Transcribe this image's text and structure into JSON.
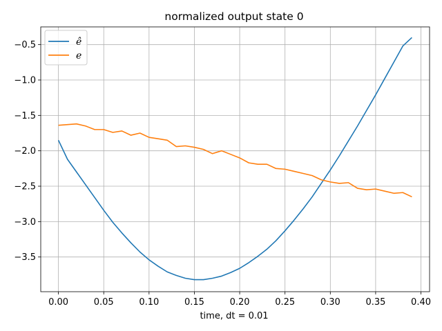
{
  "chart_data": {
    "type": "line",
    "title": "normalized output state 0",
    "xlabel": "time, dt = 0.01",
    "ylabel": "",
    "xlim": [
      -0.0195,
      0.4095
    ],
    "ylim": [
      -3.99,
      -0.25
    ],
    "xticks": [
      0.0,
      0.05,
      0.1,
      0.15,
      0.2,
      0.25,
      0.3,
      0.35,
      0.4
    ],
    "xtick_labels": [
      "0.00",
      "0.05",
      "0.10",
      "0.15",
      "0.20",
      "0.25",
      "0.30",
      "0.35",
      "0.40"
    ],
    "yticks": [
      -3.5,
      -3.0,
      -2.5,
      -2.0,
      -1.5,
      -1.0,
      -0.5
    ],
    "ytick_labels": [
      "−3.5",
      "−3.0",
      "−2.5",
      "−2.0",
      "−1.5",
      "−1.0",
      "−0.5"
    ],
    "grid": true,
    "legend_position": "top-left",
    "x": [
      0.0,
      0.01,
      0.02,
      0.03,
      0.04,
      0.05,
      0.06,
      0.07,
      0.08,
      0.09,
      0.1,
      0.11,
      0.12,
      0.13,
      0.14,
      0.15,
      0.16,
      0.17,
      0.18,
      0.19,
      0.2,
      0.21,
      0.22,
      0.23,
      0.24,
      0.25,
      0.26,
      0.27,
      0.28,
      0.29,
      0.3,
      0.31,
      0.32,
      0.33,
      0.34,
      0.35,
      0.36,
      0.37,
      0.38,
      0.39
    ],
    "series": [
      {
        "name": "ê",
        "color": "#1f77b4",
        "values": [
          -1.85,
          -2.12,
          -2.3,
          -2.48,
          -2.66,
          -2.84,
          -3.01,
          -3.16,
          -3.3,
          -3.43,
          -3.54,
          -3.63,
          -3.71,
          -3.76,
          -3.8,
          -3.82,
          -3.82,
          -3.8,
          -3.77,
          -3.72,
          -3.66,
          -3.58,
          -3.49,
          -3.39,
          -3.27,
          -3.13,
          -2.98,
          -2.82,
          -2.65,
          -2.46,
          -2.27,
          -2.07,
          -1.86,
          -1.65,
          -1.43,
          -1.21,
          -0.98,
          -0.75,
          -0.52,
          -0.4
        ]
      },
      {
        "name": "e",
        "color": "#ff7f0e",
        "values": [
          -1.64,
          -1.63,
          -1.62,
          -1.65,
          -1.7,
          -1.7,
          -1.74,
          -1.72,
          -1.78,
          -1.75,
          -1.81,
          -1.83,
          -1.85,
          -1.94,
          -1.93,
          -1.95,
          -1.98,
          -2.04,
          -2.0,
          -2.05,
          -2.1,
          -2.17,
          -2.19,
          -2.19,
          -2.25,
          -2.26,
          -2.29,
          -2.32,
          -2.35,
          -2.41,
          -2.44,
          -2.46,
          -2.45,
          -2.53,
          -2.55,
          -2.54,
          -2.57,
          -2.6,
          -2.59,
          -2.65
        ]
      }
    ]
  },
  "legend": {
    "items": [
      {
        "label": "ê"
      },
      {
        "label": "e"
      }
    ]
  }
}
